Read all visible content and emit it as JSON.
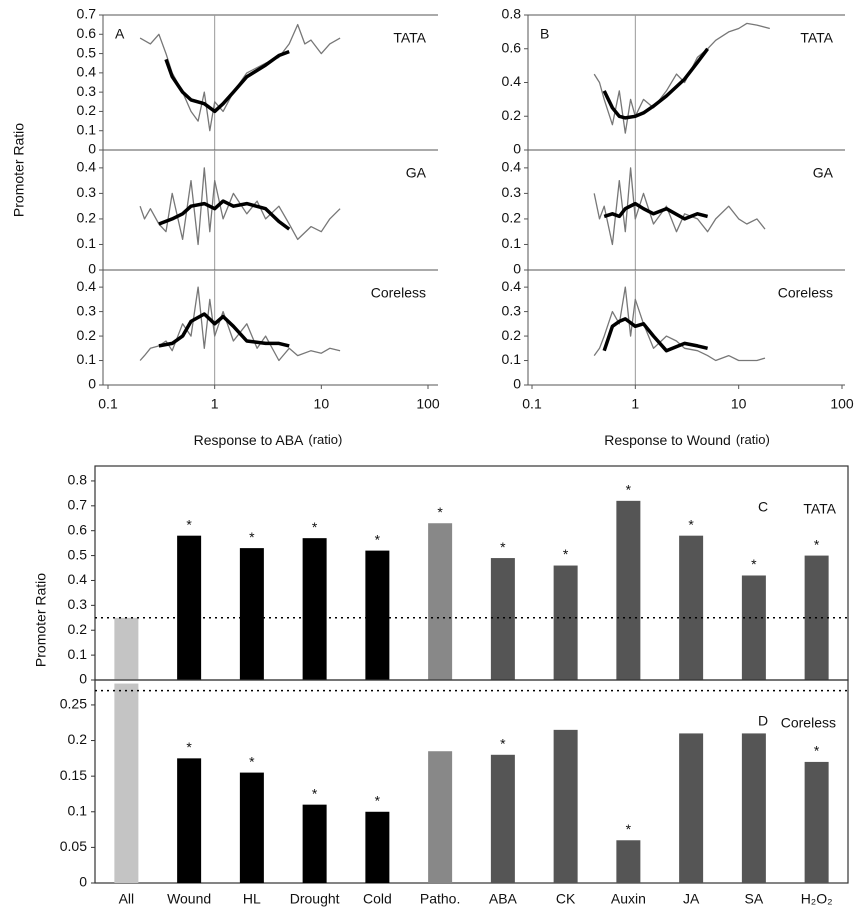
{
  "chart_data": [
    {
      "type": "line",
      "panel": "A",
      "title": "TATA",
      "xscale": "log",
      "xlim": [
        0.1,
        100
      ],
      "ylim": [
        0,
        0.7
      ],
      "yticks": [
        0,
        0.1,
        0.2,
        0.3,
        0.4,
        0.5,
        0.6,
        0.7
      ],
      "vline": 1,
      "series": [
        {
          "color": "#777777",
          "width": 1.3,
          "x": [
            0.2,
            0.25,
            0.3,
            0.35,
            0.4,
            0.5,
            0.6,
            0.7,
            0.8,
            0.9,
            1,
            1.2,
            1.5,
            2,
            3,
            4,
            5,
            6,
            7,
            8,
            10,
            12,
            15
          ],
          "values": [
            0.58,
            0.55,
            0.6,
            0.5,
            0.4,
            0.3,
            0.2,
            0.15,
            0.3,
            0.1,
            0.25,
            0.2,
            0.3,
            0.4,
            0.45,
            0.48,
            0.55,
            0.65,
            0.55,
            0.57,
            0.5,
            0.55,
            0.58
          ]
        },
        {
          "color": "#000000",
          "width": 3.5,
          "x": [
            0.35,
            0.4,
            0.5,
            0.6,
            0.8,
            1,
            1.2,
            1.5,
            2,
            3,
            4,
            5
          ],
          "values": [
            0.47,
            0.38,
            0.3,
            0.26,
            0.24,
            0.2,
            0.24,
            0.3,
            0.38,
            0.44,
            0.49,
            0.51
          ]
        }
      ]
    },
    {
      "type": "line",
      "title": "GA",
      "ylabel": "Promoter Ratio",
      "xscale": "log",
      "xlim": [
        0.1,
        100
      ],
      "ylim": [
        0,
        0.47
      ],
      "yticks": [
        0,
        0.1,
        0.2,
        0.3,
        0.4
      ],
      "vline": 1,
      "series": [
        {
          "color": "#777777",
          "width": 1.3,
          "x": [
            0.2,
            0.22,
            0.25,
            0.3,
            0.35,
            0.4,
            0.5,
            0.6,
            0.7,
            0.8,
            0.9,
            1,
            1.2,
            1.5,
            2,
            2.5,
            3,
            4,
            5,
            6,
            8,
            10,
            12,
            15
          ],
          "values": [
            0.25,
            0.2,
            0.24,
            0.18,
            0.15,
            0.3,
            0.12,
            0.35,
            0.1,
            0.4,
            0.15,
            0.35,
            0.2,
            0.3,
            0.22,
            0.27,
            0.2,
            0.25,
            0.18,
            0.12,
            0.17,
            0.15,
            0.2,
            0.24
          ]
        },
        {
          "color": "#000000",
          "width": 3.5,
          "x": [
            0.3,
            0.4,
            0.5,
            0.6,
            0.8,
            1,
            1.2,
            1.5,
            2,
            3,
            4,
            5
          ],
          "values": [
            0.18,
            0.2,
            0.22,
            0.25,
            0.26,
            0.24,
            0.27,
            0.25,
            0.26,
            0.24,
            0.19,
            0.16
          ]
        }
      ]
    },
    {
      "type": "line",
      "title": "Coreless",
      "xscale": "log",
      "xlim": [
        0.1,
        100
      ],
      "ylim": [
        0,
        0.47
      ],
      "yticks": [
        0,
        0.1,
        0.2,
        0.3,
        0.4
      ],
      "vline": 1,
      "xticks": [
        0.1,
        1,
        10,
        100
      ],
      "xlabel": "Response to ABA",
      "xlabel_unit": "(ratio)",
      "series": [
        {
          "color": "#777777",
          "width": 1.3,
          "x": [
            0.2,
            0.22,
            0.25,
            0.3,
            0.35,
            0.4,
            0.5,
            0.6,
            0.7,
            0.8,
            0.9,
            1,
            1.2,
            1.5,
            2,
            2.5,
            3,
            4,
            5,
            6,
            8,
            10,
            12,
            15
          ],
          "values": [
            0.1,
            0.12,
            0.15,
            0.16,
            0.18,
            0.14,
            0.25,
            0.2,
            0.4,
            0.15,
            0.35,
            0.2,
            0.3,
            0.18,
            0.25,
            0.15,
            0.2,
            0.1,
            0.15,
            0.12,
            0.14,
            0.13,
            0.15,
            0.14
          ]
        },
        {
          "color": "#000000",
          "width": 3.5,
          "x": [
            0.3,
            0.4,
            0.5,
            0.6,
            0.8,
            1,
            1.2,
            1.5,
            2,
            3,
            4,
            5
          ],
          "values": [
            0.16,
            0.17,
            0.2,
            0.26,
            0.29,
            0.25,
            0.28,
            0.24,
            0.18,
            0.17,
            0.17,
            0.16
          ]
        }
      ]
    },
    {
      "type": "line",
      "panel": "B",
      "title": "TATA",
      "xscale": "log",
      "xlim": [
        0.1,
        100
      ],
      "ylim": [
        0,
        0.8
      ],
      "yticks": [
        0,
        0.2,
        0.4,
        0.6,
        0.8
      ],
      "vline": 1,
      "series": [
        {
          "color": "#777777",
          "width": 1.3,
          "x": [
            0.4,
            0.45,
            0.5,
            0.6,
            0.7,
            0.8,
            0.9,
            1,
            1.2,
            1.5,
            2,
            2.5,
            3,
            4,
            5,
            6,
            8,
            10,
            12,
            15,
            20
          ],
          "values": [
            0.45,
            0.4,
            0.3,
            0.15,
            0.35,
            0.1,
            0.3,
            0.2,
            0.3,
            0.25,
            0.35,
            0.45,
            0.4,
            0.55,
            0.6,
            0.65,
            0.7,
            0.72,
            0.75,
            0.74,
            0.72
          ]
        },
        {
          "color": "#000000",
          "width": 3.5,
          "x": [
            0.5,
            0.6,
            0.7,
            0.8,
            1,
            1.2,
            1.5,
            2,
            3,
            4,
            5
          ],
          "values": [
            0.35,
            0.25,
            0.2,
            0.19,
            0.2,
            0.22,
            0.26,
            0.32,
            0.42,
            0.52,
            0.6
          ]
        }
      ]
    },
    {
      "type": "line",
      "title": "GA",
      "xscale": "log",
      "xlim": [
        0.1,
        100
      ],
      "ylim": [
        0,
        0.47
      ],
      "yticks": [
        0,
        0.1,
        0.2,
        0.3,
        0.4
      ],
      "vline": 1,
      "series": [
        {
          "color": "#777777",
          "width": 1.3,
          "x": [
            0.4,
            0.45,
            0.5,
            0.6,
            0.7,
            0.8,
            0.9,
            1,
            1.2,
            1.5,
            2,
            2.5,
            3,
            4,
            5,
            6,
            8,
            10,
            12,
            15,
            18
          ],
          "values": [
            0.3,
            0.2,
            0.25,
            0.1,
            0.35,
            0.15,
            0.4,
            0.2,
            0.3,
            0.18,
            0.25,
            0.15,
            0.22,
            0.2,
            0.15,
            0.2,
            0.25,
            0.2,
            0.18,
            0.2,
            0.16
          ]
        },
        {
          "color": "#000000",
          "width": 3.5,
          "x": [
            0.5,
            0.6,
            0.7,
            0.8,
            1,
            1.2,
            1.5,
            2,
            3,
            4,
            5
          ],
          "values": [
            0.21,
            0.22,
            0.21,
            0.24,
            0.26,
            0.24,
            0.22,
            0.24,
            0.2,
            0.22,
            0.21
          ]
        }
      ]
    },
    {
      "type": "line",
      "title": "Coreless",
      "xscale": "log",
      "xlim": [
        0.1,
        100
      ],
      "ylim": [
        0,
        0.47
      ],
      "yticks": [
        0,
        0.1,
        0.2,
        0.3,
        0.4
      ],
      "vline": 1,
      "xticks": [
        0.1,
        1,
        10,
        100
      ],
      "xlabel": "Response to Wound",
      "xlabel_unit": "(ratio)",
      "series": [
        {
          "color": "#777777",
          "width": 1.3,
          "x": [
            0.4,
            0.45,
            0.5,
            0.6,
            0.7,
            0.8,
            0.9,
            1,
            1.2,
            1.5,
            2,
            2.5,
            3,
            4,
            5,
            6,
            8,
            10,
            12,
            15,
            18
          ],
          "values": [
            0.12,
            0.15,
            0.2,
            0.3,
            0.25,
            0.4,
            0.2,
            0.35,
            0.25,
            0.15,
            0.2,
            0.18,
            0.15,
            0.14,
            0.12,
            0.1,
            0.12,
            0.1,
            0.1,
            0.1,
            0.11
          ]
        },
        {
          "color": "#000000",
          "width": 3.5,
          "x": [
            0.5,
            0.6,
            0.7,
            0.8,
            1,
            1.2,
            1.5,
            2,
            3,
            4,
            5
          ],
          "values": [
            0.14,
            0.24,
            0.26,
            0.27,
            0.24,
            0.25,
            0.2,
            0.14,
            0.17,
            0.16,
            0.15
          ]
        }
      ]
    },
    {
      "type": "bar",
      "panel": "C",
      "title": "TATA",
      "ylabel": "Promoter Ratio",
      "ylim": [
        0,
        0.86
      ],
      "yticks": [
        0,
        0.1,
        0.2,
        0.3,
        0.4,
        0.5,
        0.6,
        0.7,
        0.8
      ],
      "hline": 0.25,
      "marker": "*",
      "values": [
        0.25,
        0.58,
        0.53,
        0.57,
        0.52,
        0.63,
        0.49,
        0.46,
        0.72,
        0.58,
        0.42,
        0.5
      ],
      "significant": [
        false,
        true,
        true,
        true,
        true,
        true,
        true,
        true,
        true,
        true,
        true,
        true
      ],
      "colors": [
        "#c4c4c4",
        "#000000",
        "#000000",
        "#000000",
        "#000000",
        "#888888",
        "#555555",
        "#555555",
        "#555555",
        "#555555",
        "#555555",
        "#555555"
      ]
    },
    {
      "type": "bar",
      "panel": "D",
      "title": "Coreless",
      "ylim": [
        0,
        0.285
      ],
      "yticks": [
        0,
        0.05,
        0.1,
        0.15,
        0.2,
        0.25
      ],
      "hline": 0.27,
      "marker": "*",
      "categories": [
        "All",
        "Wound",
        "HL",
        "Drought",
        "Cold",
        "Patho.",
        "ABA",
        "CK",
        "Auxin",
        "JA",
        "SA",
        "H₂O₂"
      ],
      "values": [
        0.28,
        0.175,
        0.155,
        0.11,
        0.1,
        0.185,
        0.18,
        0.215,
        0.06,
        0.21,
        0.21,
        0.17
      ],
      "significant": [
        false,
        true,
        true,
        true,
        true,
        false,
        true,
        false,
        true,
        false,
        false,
        true
      ],
      "colors": [
        "#c4c4c4",
        "#000000",
        "#000000",
        "#000000",
        "#000000",
        "#888888",
        "#555555",
        "#555555",
        "#555555",
        "#555555",
        "#555555",
        "#555555"
      ]
    }
  ]
}
